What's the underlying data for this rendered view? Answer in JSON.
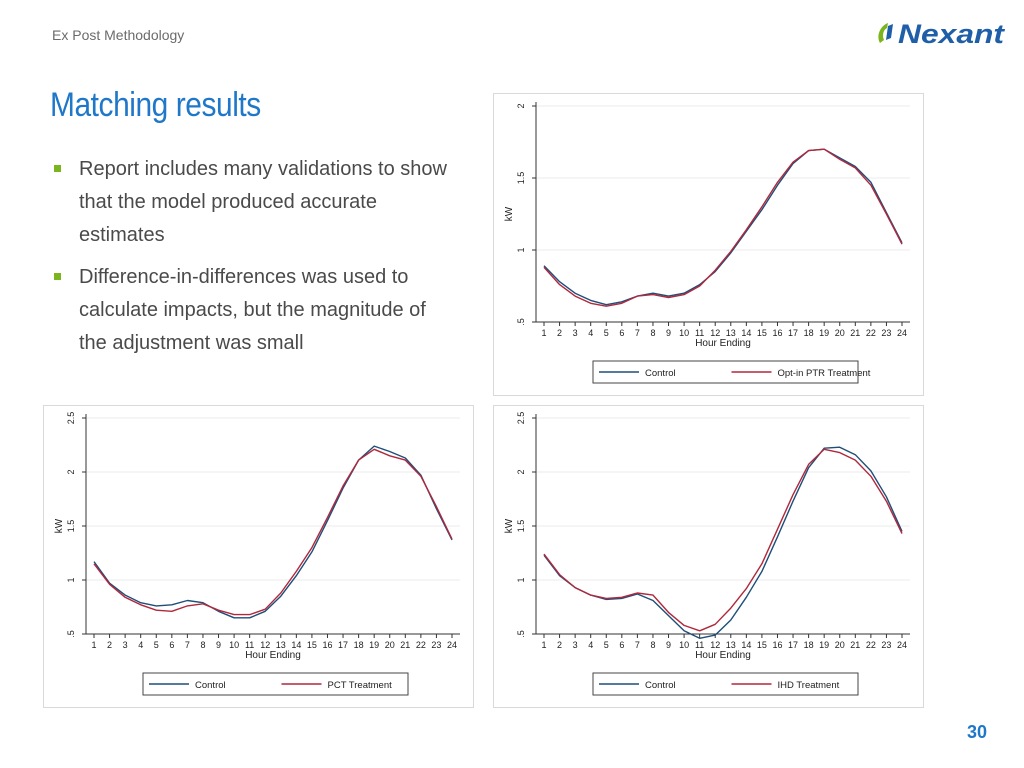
{
  "header": {
    "section_label": "Ex Post Methodology"
  },
  "logo": {
    "text": "Nexant",
    "mark_color": "#7ab51d",
    "text_color": "#1f5fa8"
  },
  "slide": {
    "title": "Matching results",
    "bullets": [
      "Report includes many validations to show that the model produced accurate estimates",
      "Difference-in-differences was used to calculate impacts, but the magnitude of the adjustment was small"
    ],
    "page_number": "30"
  },
  "colors": {
    "title": "#1f77c9",
    "bullet_marker": "#7ab51d",
    "control_line": "#1f4e79",
    "treatment_line": "#b0283c"
  },
  "chart_data": [
    {
      "type": "line",
      "xlabel": "Hour Ending",
      "ylabel": "kW",
      "ylim": [
        0.5,
        2
      ],
      "y_ticks": [
        ".5",
        "1",
        "1.5",
        "2"
      ],
      "y_tick_values": [
        0.5,
        1,
        1.5,
        2
      ],
      "x": [
        1,
        2,
        3,
        4,
        5,
        6,
        7,
        8,
        9,
        10,
        11,
        12,
        13,
        14,
        15,
        16,
        17,
        18,
        19,
        20,
        21,
        22,
        23,
        24
      ],
      "grid": true,
      "legend_position": "bottom",
      "series": [
        {
          "name": "Control",
          "color": "#1f4e79",
          "values": [
            0.89,
            0.78,
            0.7,
            0.65,
            0.62,
            0.64,
            0.68,
            0.7,
            0.68,
            0.7,
            0.76,
            0.85,
            0.98,
            1.13,
            1.28,
            1.45,
            1.6,
            1.69,
            1.7,
            1.64,
            1.58,
            1.47,
            1.26,
            1.05
          ]
        },
        {
          "name": "Opt-in PTR Treatment",
          "color": "#b0283c",
          "values": [
            0.88,
            0.76,
            0.68,
            0.63,
            0.61,
            0.63,
            0.68,
            0.69,
            0.67,
            0.69,
            0.75,
            0.86,
            0.99,
            1.14,
            1.3,
            1.47,
            1.61,
            1.69,
            1.7,
            1.63,
            1.57,
            1.45,
            1.25,
            1.04
          ]
        }
      ]
    },
    {
      "type": "line",
      "xlabel": "Hour Ending",
      "ylabel": "kW",
      "ylim": [
        0.5,
        2.5
      ],
      "y_ticks": [
        ".5",
        "1",
        "1.5",
        "2",
        "2.5"
      ],
      "y_tick_values": [
        0.5,
        1,
        1.5,
        2,
        2.5
      ],
      "x": [
        1,
        2,
        3,
        4,
        5,
        6,
        7,
        8,
        9,
        10,
        11,
        12,
        13,
        14,
        15,
        16,
        17,
        18,
        19,
        20,
        21,
        22,
        23,
        24
      ],
      "grid": true,
      "legend_position": "bottom",
      "series": [
        {
          "name": "Control",
          "color": "#1f4e79",
          "values": [
            1.17,
            0.97,
            0.86,
            0.79,
            0.76,
            0.77,
            0.81,
            0.79,
            0.71,
            0.65,
            0.65,
            0.71,
            0.85,
            1.04,
            1.26,
            1.55,
            1.85,
            2.11,
            2.24,
            2.19,
            2.13,
            1.97,
            1.66,
            1.37
          ]
        },
        {
          "name": "PCT Treatment",
          "color": "#b0283c",
          "values": [
            1.15,
            0.96,
            0.84,
            0.77,
            0.72,
            0.71,
            0.76,
            0.78,
            0.72,
            0.68,
            0.68,
            0.73,
            0.88,
            1.08,
            1.3,
            1.58,
            1.87,
            2.11,
            2.21,
            2.15,
            2.11,
            1.96,
            1.68,
            1.38
          ]
        }
      ]
    },
    {
      "type": "line",
      "xlabel": "Hour Ending",
      "ylabel": "kW",
      "ylim": [
        0.5,
        2.5
      ],
      "y_ticks": [
        ".5",
        "1",
        "1.5",
        "2",
        "2.5"
      ],
      "y_tick_values": [
        0.5,
        1,
        1.5,
        2,
        2.5
      ],
      "x": [
        1,
        2,
        3,
        4,
        5,
        6,
        7,
        8,
        9,
        10,
        11,
        12,
        13,
        14,
        15,
        16,
        17,
        18,
        19,
        20,
        21,
        22,
        23,
        24
      ],
      "grid": true,
      "legend_position": "bottom",
      "series": [
        {
          "name": "Control",
          "color": "#1f4e79",
          "values": [
            1.23,
            1.04,
            0.93,
            0.86,
            0.82,
            0.83,
            0.87,
            0.81,
            0.67,
            0.53,
            0.46,
            0.49,
            0.63,
            0.84,
            1.08,
            1.4,
            1.73,
            2.04,
            2.22,
            2.23,
            2.16,
            2.01,
            1.77,
            1.45
          ]
        },
        {
          "name": "IHD Treatment",
          "color": "#b0283c",
          "values": [
            1.24,
            1.05,
            0.93,
            0.86,
            0.83,
            0.84,
            0.88,
            0.86,
            0.7,
            0.58,
            0.53,
            0.59,
            0.74,
            0.92,
            1.15,
            1.47,
            1.79,
            2.07,
            2.21,
            2.18,
            2.11,
            1.96,
            1.73,
            1.43
          ]
        }
      ]
    }
  ]
}
